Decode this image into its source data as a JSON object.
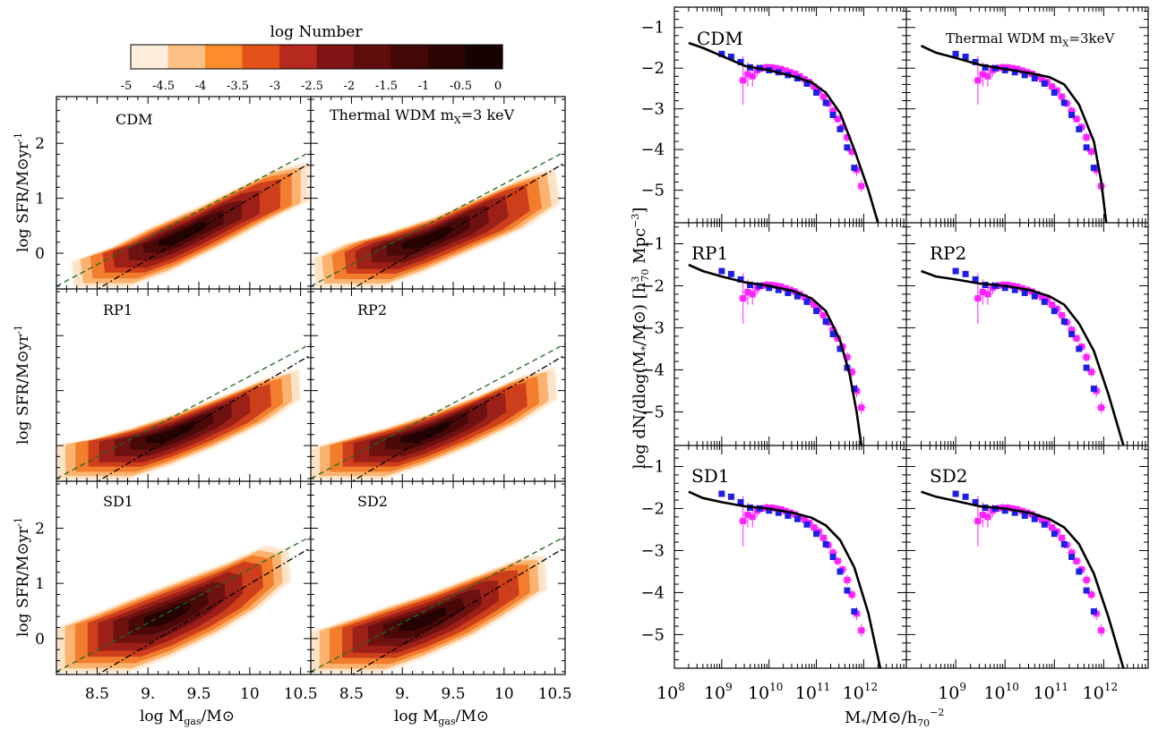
{
  "colorbar": {
    "title": "log Number",
    "ticks": [
      "-5",
      "-4.5",
      "-4",
      "-3.5",
      "-3",
      "-2.5",
      "-2",
      "-1.5",
      "-1",
      "-0.5",
      "0"
    ],
    "colors": [
      "#fdeedc",
      "#fcc085",
      "#fc8d2a",
      "#e4521a",
      "#b42a1e",
      "#821416",
      "#600d0d",
      "#420707",
      "#2b0404",
      "#170202"
    ]
  },
  "panel_labels": {
    "cdm": "CDM",
    "wdm_prefix": "Thermal WDM m",
    "wdm_sub": "X",
    "wdm_suffix": "=3 keV",
    "wdm_suffix_right": "=3keV",
    "rp1": "RP1",
    "rp2": "RP2",
    "sd1": "SD1",
    "sd2": "SD2"
  },
  "chart_data": [
    {
      "type": "heatmap",
      "description_source": "left grid: contour maps of log Number",
      "xlabel_main": "log M",
      "xlabel_sub": "gas",
      "xlabel_tail": "/M⊙",
      "ylabel_main": "log SFR/M⊙yr",
      "ylabel_sup": "-1",
      "xlim": [
        8.1,
        10.6
      ],
      "ylim": [
        -0.65,
        2.85
      ],
      "xticks": [
        8.5,
        9.0,
        9.5,
        10.0,
        10.5
      ],
      "xtick_labels": [
        "8.5",
        "9.",
        "9.5",
        "10",
        "10.5"
      ],
      "yticks": [
        0,
        1,
        2
      ],
      "ytick_labels": [
        "0",
        "1",
        "2"
      ],
      "reference_lines": [
        {
          "style": "dashed",
          "color": "#1e6b1e",
          "x": [
            8.1,
            10.6
          ],
          "y": [
            -0.6,
            1.85
          ]
        },
        {
          "style": "dash-dot",
          "color": "#000000",
          "x": [
            8.1,
            10.6
          ],
          "y": [
            -1.1,
            1.65
          ]
        }
      ],
      "panels": [
        "CDM",
        "Thermal WDM mX=3 keV",
        "RP1",
        "RP2",
        "SD1",
        "SD2"
      ]
    },
    {
      "type": "line",
      "xlabel": "M*/M⊙/h70^-2",
      "ylabel": "log dN/dlog(M*/M⊙) [h70^3 Mpc^-3]",
      "xscale": "log",
      "xlim_log10": [
        8.0,
        12.9
      ],
      "ylim": [
        -5.8,
        -0.5
      ],
      "xtick_labels": [
        "10",
        "10",
        "10",
        "10",
        "10"
      ],
      "xtick_exponents": [
        "8",
        "9",
        "10",
        "11",
        "12"
      ],
      "xtick_positions_log10": [
        8,
        9,
        10,
        11,
        12
      ],
      "yticks": [
        -1,
        -2,
        -3,
        -4,
        -5
      ],
      "ytick_labels": [
        "−1",
        "−2",
        "−3",
        "−4",
        "−5"
      ],
      "obs_blue": {
        "log_m": [
          9.0,
          9.2,
          9.4,
          9.6,
          9.8,
          10.0,
          10.2,
          10.4,
          10.6,
          10.8,
          11.0,
          11.2,
          11.35,
          11.5,
          11.65,
          11.8
        ],
        "log_phi": [
          -1.65,
          -1.72,
          -1.85,
          -1.98,
          -2.0,
          -2.05,
          -2.1,
          -2.17,
          -2.25,
          -2.38,
          -2.6,
          -2.85,
          -3.15,
          -3.5,
          -3.95,
          -4.45
        ]
      },
      "obs_magenta": {
        "log_m": [
          9.45,
          9.55,
          9.65,
          9.75,
          9.85,
          9.95,
          10.05,
          10.15,
          10.25,
          10.35,
          10.45,
          10.55,
          10.65,
          10.75,
          10.85,
          10.95,
          11.05,
          11.15,
          11.25,
          11.35,
          11.45,
          11.55,
          11.65,
          11.75,
          11.85,
          11.95
        ],
        "log_phi": [
          -2.3,
          -2.15,
          -2.2,
          -2.05,
          -2.0,
          -1.98,
          -1.98,
          -2.0,
          -2.02,
          -2.06,
          -2.1,
          -2.14,
          -2.2,
          -2.27,
          -2.34,
          -2.45,
          -2.55,
          -2.7,
          -2.87,
          -3.05,
          -3.25,
          -3.45,
          -3.7,
          -4.05,
          -4.5,
          -4.9
        ],
        "err": [
          0.6,
          0.3,
          0.25,
          0.15,
          0.1,
          0.1,
          0.08,
          0.08,
          0.08,
          0.08,
          0.08,
          0.08,
          0.08,
          0.08,
          0.08,
          0.08,
          0.08,
          0.08,
          0.08,
          0.1,
          0.1,
          0.1,
          0.12,
          0.12,
          0.15,
          0.15
        ]
      },
      "series": [
        {
          "panel": "CDM",
          "log_m": [
            8.3,
            8.6,
            9.0,
            9.5,
            10.0,
            10.5,
            10.9,
            11.2,
            11.5,
            11.8,
            12.1,
            12.3
          ],
          "log_phi": [
            -1.38,
            -1.5,
            -1.7,
            -1.95,
            -2.05,
            -2.2,
            -2.35,
            -2.6,
            -3.1,
            -4.0,
            -5.0,
            -5.8
          ]
        },
        {
          "panel": "Thermal WDM mX=3keV",
          "log_m": [
            8.3,
            8.6,
            9.0,
            9.5,
            10.0,
            10.5,
            10.9,
            11.2,
            11.5,
            11.8,
            11.95,
            12.05
          ],
          "log_phi": [
            -1.45,
            -1.62,
            -1.75,
            -1.92,
            -2.02,
            -2.12,
            -2.22,
            -2.4,
            -2.9,
            -3.8,
            -4.8,
            -5.8
          ]
        },
        {
          "panel": "RP1",
          "log_m": [
            8.3,
            8.6,
            9.0,
            9.5,
            10.0,
            10.5,
            10.9,
            11.2,
            11.5,
            11.7,
            11.85,
            11.95
          ],
          "log_phi": [
            -1.5,
            -1.65,
            -1.78,
            -1.92,
            -2.0,
            -2.12,
            -2.3,
            -2.6,
            -3.3,
            -4.1,
            -5.0,
            -5.8
          ]
        },
        {
          "panel": "RP2",
          "log_m": [
            8.3,
            8.6,
            9.0,
            9.5,
            10.0,
            10.5,
            10.9,
            11.2,
            11.5,
            11.8,
            12.1,
            12.4
          ],
          "log_phi": [
            -1.65,
            -1.78,
            -1.85,
            -1.95,
            -2.0,
            -2.1,
            -2.25,
            -2.45,
            -2.9,
            -3.55,
            -4.6,
            -5.8
          ]
        },
        {
          "panel": "SD1",
          "log_m": [
            8.3,
            8.6,
            9.0,
            9.5,
            10.0,
            10.5,
            10.9,
            11.2,
            11.5,
            11.8,
            12.1,
            12.35
          ],
          "log_phi": [
            -1.6,
            -1.75,
            -1.85,
            -1.95,
            -2.0,
            -2.1,
            -2.22,
            -2.4,
            -2.75,
            -3.4,
            -4.5,
            -5.8
          ]
        },
        {
          "panel": "SD2",
          "log_m": [
            8.3,
            8.6,
            9.0,
            9.5,
            10.0,
            10.5,
            10.9,
            11.2,
            11.5,
            11.8,
            12.1,
            12.4
          ],
          "log_phi": [
            -1.6,
            -1.72,
            -1.82,
            -1.95,
            -2.0,
            -2.1,
            -2.25,
            -2.45,
            -2.85,
            -3.55,
            -4.6,
            -5.8
          ]
        }
      ]
    }
  ]
}
